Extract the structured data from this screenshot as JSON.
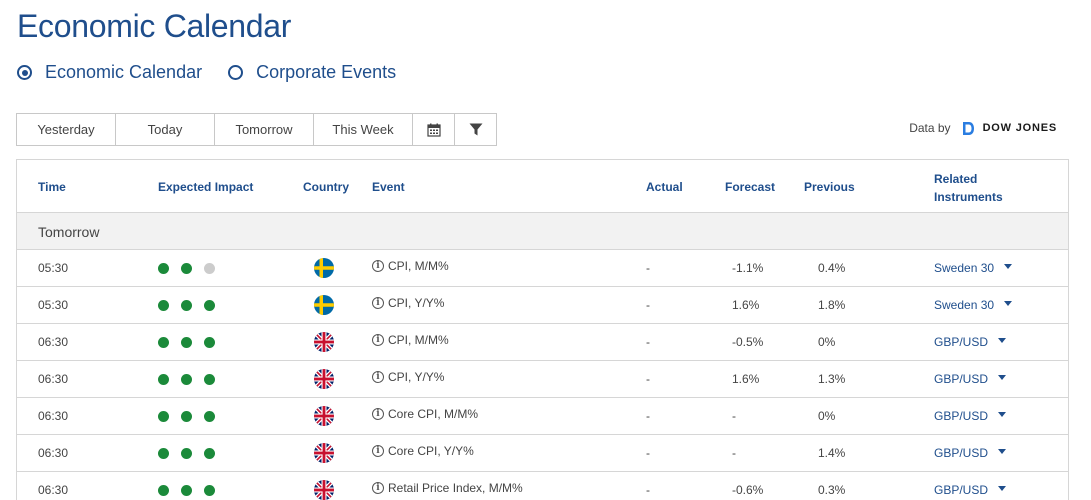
{
  "page": {
    "title": "Economic Calendar"
  },
  "radios": [
    {
      "label": "Economic Calendar",
      "checked": true
    },
    {
      "label": "Corporate Events",
      "checked": false
    }
  ],
  "toolbar": {
    "yesterday": "Yesterday",
    "today": "Today",
    "tomorrow": "Tomorrow",
    "this_week": "This Week",
    "calendar_icon": "calendar-icon",
    "filter_icon": "filter-icon"
  },
  "source": {
    "label": "Data by",
    "logo_text": "DOW JONES"
  },
  "table": {
    "headers": {
      "time": "Time",
      "impact": "Expected Impact",
      "country": "Country",
      "event": "Event",
      "actual": "Actual",
      "forecast": "Forecast",
      "previous": "Previous",
      "related": "Related Instruments"
    },
    "group": "Tomorrow",
    "rows": [
      {
        "time": "05:30",
        "impact": 2,
        "country": "SE",
        "event": "CPI, M/M%",
        "actual": "-",
        "forecast": "-1.1%",
        "previous": "0.4%",
        "instrument": "Sweden 30"
      },
      {
        "time": "05:30",
        "impact": 3,
        "country": "SE",
        "event": "CPI, Y/Y%",
        "actual": "-",
        "forecast": "1.6%",
        "previous": "1.8%",
        "instrument": "Sweden 30"
      },
      {
        "time": "06:30",
        "impact": 3,
        "country": "GB",
        "event": "CPI, M/M%",
        "actual": "-",
        "forecast": "-0.5%",
        "previous": "0%",
        "instrument": "GBP/USD"
      },
      {
        "time": "06:30",
        "impact": 3,
        "country": "GB",
        "event": "CPI, Y/Y%",
        "actual": "-",
        "forecast": "1.6%",
        "previous": "1.3%",
        "instrument": "GBP/USD"
      },
      {
        "time": "06:30",
        "impact": 3,
        "country": "GB",
        "event": "Core CPI, M/M%",
        "actual": "-",
        "forecast": "-",
        "previous": "0%",
        "instrument": "GBP/USD"
      },
      {
        "time": "06:30",
        "impact": 3,
        "country": "GB",
        "event": "Core CPI, Y/Y%",
        "actual": "-",
        "forecast": "-",
        "previous": "1.4%",
        "instrument": "GBP/USD"
      },
      {
        "time": "06:30",
        "impact": 3,
        "country": "GB",
        "event": "Retail Price Index, M/M%",
        "actual": "-",
        "forecast": "-0.6%",
        "previous": "0.3%",
        "instrument": "GBP/USD"
      }
    ]
  },
  "colors": {
    "brand": "#1f4e8c",
    "impact_on": "#1b8a3a",
    "impact_off": "#cccccc"
  }
}
